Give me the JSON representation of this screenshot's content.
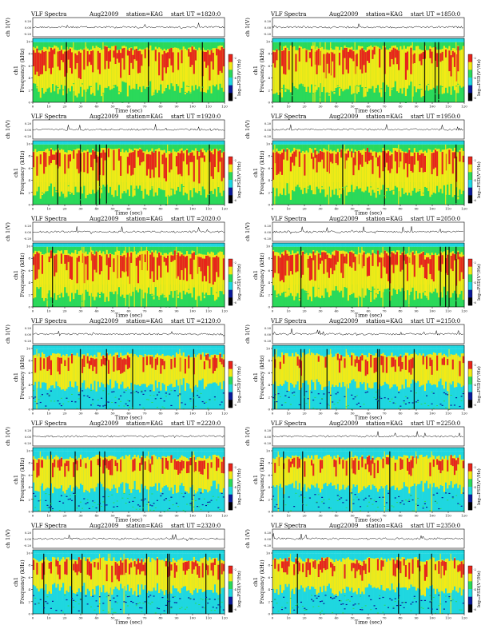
{
  "page": {
    "columns": 2,
    "rows": 6
  },
  "colors": {
    "blue": "#0a1a9a",
    "cyan": "#1fd7e0",
    "green": "#2bd95a",
    "yellow": "#f2ea16",
    "red": "#e8251b",
    "dark": "#000000"
  },
  "chart_data": [
    {
      "type": "heatmap",
      "title": "VLF Spectra",
      "date": "Aug22009",
      "station": "station=KAG",
      "start": "start UT =1820:0",
      "top_ylabel": "ch 1(V)",
      "top_yticks": [
        "0.20",
        "0.00",
        "-0.20"
      ],
      "ylabel_line1": "ch1",
      "ylabel_line2": "Frequency (kHz)",
      "xlabel": "Time (sec)",
      "xticks": [
        0,
        10,
        20,
        30,
        40,
        50,
        60,
        70,
        80,
        90,
        100,
        110,
        120
      ],
      "yticks": [
        0,
        2,
        4,
        6,
        8,
        10
      ],
      "ylim": [
        0,
        10
      ],
      "xlim": [
        0,
        120
      ],
      "colorbar_label": "log₁₀PSD(V²/Hz)",
      "colorbar_ticks": [
        "-2",
        "-4",
        "-6"
      ]
    },
    {
      "type": "heatmap",
      "title": "VLF Spectra",
      "date": "Aug22009",
      "station": "station=KAG",
      "start": "start UT =1850:0",
      "top_ylabel": "ch 1(V)",
      "top_yticks": [
        "0.20",
        "0.00",
        "-0.20"
      ],
      "ylabel_line1": "ch1",
      "ylabel_line2": "Frequency (kHz)",
      "xlabel": "Time (sec)",
      "xticks": [
        0,
        10,
        20,
        30,
        40,
        50,
        60,
        70,
        80,
        90,
        100,
        110,
        120
      ],
      "yticks": [
        0,
        2,
        4,
        6,
        8,
        10
      ],
      "ylim": [
        0,
        10
      ],
      "xlim": [
        0,
        120
      ],
      "colorbar_label": "log₁₀PSD(V²/Hz)",
      "colorbar_ticks": [
        "-2",
        "-4",
        "-6"
      ]
    },
    {
      "type": "heatmap",
      "title": "VLF Spectra",
      "date": "Aug22009",
      "station": "station=KAG",
      "start": "start UT =1920:0",
      "top_ylabel": "ch 1(V)",
      "top_yticks": [
        "0.20",
        "0.00",
        "-0.20"
      ],
      "ylabel_line1": "ch1",
      "ylabel_line2": "Frequency (kHz)",
      "xlabel": "Time (sec)",
      "xticks": [
        0,
        10,
        20,
        30,
        40,
        50,
        60,
        70,
        80,
        90,
        100,
        110,
        120
      ],
      "yticks": [
        0,
        2,
        4,
        6,
        8,
        10
      ],
      "ylim": [
        0,
        10
      ],
      "xlim": [
        0,
        120
      ],
      "colorbar_label": "log₁₀PSD(V²/Hz)",
      "colorbar_ticks": [
        "-2",
        "-4",
        "-6"
      ]
    },
    {
      "type": "heatmap",
      "title": "VLF Spectra",
      "date": "Aug22009",
      "station": "station=KAG",
      "start": "start UT =1950:0",
      "top_ylabel": "ch 1(V)",
      "top_yticks": [
        "0.20",
        "0.00",
        "-0.20"
      ],
      "ylabel_line1": "ch1",
      "ylabel_line2": "Frequency (kHz)",
      "xlabel": "Time (sec)",
      "xticks": [
        0,
        10,
        20,
        30,
        40,
        50,
        60,
        70,
        80,
        90,
        100,
        110,
        120
      ],
      "yticks": [
        0,
        2,
        4,
        6,
        8,
        10
      ],
      "ylim": [
        0,
        10
      ],
      "xlim": [
        0,
        120
      ],
      "colorbar_label": "log₁₀PSD(V²/Hz)",
      "colorbar_ticks": [
        "-2",
        "-4",
        "-6"
      ]
    },
    {
      "type": "heatmap",
      "title": "VLF Spectra",
      "date": "Aug22009",
      "station": "station=KAG",
      "start": "start UT =2020:0",
      "top_ylabel": "ch 1(V)",
      "top_yticks": [
        "0.20",
        "0.00",
        "-0.20"
      ],
      "ylabel_line1": "ch1",
      "ylabel_line2": "Frequency (kHz)",
      "xlabel": "Time (sec)",
      "xticks": [
        0,
        10,
        20,
        30,
        40,
        50,
        60,
        70,
        80,
        90,
        100,
        110,
        120
      ],
      "yticks": [
        0,
        2,
        4,
        6,
        8,
        10
      ],
      "ylim": [
        0,
        10
      ],
      "xlim": [
        0,
        120
      ],
      "colorbar_label": "log₁₀PSD(V²/Hz)",
      "colorbar_ticks": [
        "-2",
        "-4",
        "-6"
      ]
    },
    {
      "type": "heatmap",
      "title": "VLF Spectra",
      "date": "Aug22009",
      "station": "station=KAG",
      "start": "start UT =2050:0",
      "top_ylabel": "ch 1(V)",
      "top_yticks": [
        "0.20",
        "0.00",
        "-0.20"
      ],
      "ylabel_line1": "ch1",
      "ylabel_line2": "Frequency (kHz)",
      "xlabel": "Time (sec)",
      "xticks": [
        0,
        10,
        20,
        30,
        40,
        50,
        60,
        70,
        80,
        90,
        100,
        110,
        120
      ],
      "yticks": [
        0,
        2,
        4,
        6,
        8,
        10
      ],
      "ylim": [
        0,
        10
      ],
      "xlim": [
        0,
        120
      ],
      "colorbar_label": "log₁₀PSD(V²/Hz)",
      "colorbar_ticks": [
        "-2",
        "-4",
        "-6"
      ]
    },
    {
      "type": "heatmap",
      "title": "VLF Spectra",
      "date": "Aug22009",
      "station": "station=KAG",
      "start": "start UT =2120:0",
      "top_ylabel": "ch 1(V)",
      "top_yticks": [
        "0.20",
        "0.00",
        "-0.20"
      ],
      "ylabel_line1": "ch1",
      "ylabel_line2": "Frequency (kHz)",
      "xlabel": "Time (sec)",
      "xticks": [
        0,
        10,
        20,
        30,
        40,
        50,
        60,
        70,
        80,
        90,
        100,
        110,
        120
      ],
      "yticks": [
        0,
        2,
        4,
        6,
        8,
        10
      ],
      "ylim": [
        0,
        10
      ],
      "xlim": [
        0,
        120
      ],
      "colorbar_label": "log₁₀PSD(V²/Hz)",
      "colorbar_ticks": [
        "-2",
        "-4",
        "-6"
      ]
    },
    {
      "type": "heatmap",
      "title": "VLF Spectra",
      "date": "Aug22009",
      "station": "station=KAG",
      "start": "start UT =2150:0",
      "top_ylabel": "ch 1(V)",
      "top_yticks": [
        "0.20",
        "0.00",
        "-0.20"
      ],
      "ylabel_line1": "ch1",
      "ylabel_line2": "Frequency (kHz)",
      "xlabel": "Time (sec)",
      "xticks": [
        0,
        10,
        20,
        30,
        40,
        50,
        60,
        70,
        80,
        90,
        100,
        110,
        120
      ],
      "yticks": [
        0,
        2,
        4,
        6,
        8,
        10
      ],
      "ylim": [
        0,
        10
      ],
      "xlim": [
        0,
        120
      ],
      "colorbar_label": "log₁₀PSD(V²/Hz)",
      "colorbar_ticks": [
        "-2",
        "-4",
        "-6"
      ]
    },
    {
      "type": "heatmap",
      "title": "VLF Spectra",
      "date": "Aug22009",
      "station": "station=KAG",
      "start": "start UT =2220:0",
      "top_ylabel": "ch 1(V)",
      "top_yticks": [
        "0.20",
        "0.00",
        "-0.20"
      ],
      "ylabel_line1": "ch1",
      "ylabel_line2": "Frequency (kHz)",
      "xlabel": "Time (sec)",
      "xticks": [
        0,
        10,
        20,
        30,
        40,
        50,
        60,
        70,
        80,
        90,
        100,
        110,
        120
      ],
      "yticks": [
        0,
        2,
        4,
        6,
        8,
        10
      ],
      "ylim": [
        0,
        10
      ],
      "xlim": [
        0,
        120
      ],
      "colorbar_label": "log₁₀PSD(V²/Hz)",
      "colorbar_ticks": [
        "-2",
        "-4",
        "-6"
      ]
    },
    {
      "type": "heatmap",
      "title": "VLF Spectra",
      "date": "Aug22009",
      "station": "station=KAG",
      "start": "start UT =2250:0",
      "top_ylabel": "ch 1(V)",
      "top_yticks": [
        "0.20",
        "0.00",
        "-0.20"
      ],
      "ylabel_line1": "ch1",
      "ylabel_line2": "Frequency (kHz)",
      "xlabel": "Time (sec)",
      "xticks": [
        0,
        10,
        20,
        30,
        40,
        50,
        60,
        70,
        80,
        90,
        100,
        110,
        120
      ],
      "yticks": [
        0,
        2,
        4,
        6,
        8,
        10
      ],
      "ylim": [
        0,
        10
      ],
      "xlim": [
        0,
        120
      ],
      "colorbar_label": "log₁₀PSD(V²/Hz)",
      "colorbar_ticks": [
        "-2",
        "-4",
        "-6"
      ]
    },
    {
      "type": "heatmap",
      "title": "VLF Spectra",
      "date": "Aug22009",
      "station": "station=KAG",
      "start": "start UT =2320:0",
      "top_ylabel": "ch 1(V)",
      "top_yticks": [
        "0.20",
        "0.00",
        "-0.20"
      ],
      "ylabel_line1": "ch1",
      "ylabel_line2": "Frequency (kHz)",
      "xlabel": "Time (sec)",
      "xticks": [
        0,
        10,
        20,
        30,
        40,
        50,
        60,
        70,
        80,
        90,
        100,
        110,
        120
      ],
      "yticks": [
        0,
        2,
        4,
        6,
        8,
        10
      ],
      "ylim": [
        0,
        10
      ],
      "xlim": [
        0,
        120
      ],
      "colorbar_label": "log₁₀PSD(V²/Hz)",
      "colorbar_ticks": [
        "-2",
        "-4",
        "-6"
      ]
    },
    {
      "type": "heatmap",
      "title": "VLF Spectra",
      "date": "Aug22009",
      "station": "station=KAG",
      "start": "start UT =2350:0",
      "top_ylabel": "ch 1(V)",
      "top_yticks": [
        "0.20",
        "0.00",
        "-0.20"
      ],
      "ylabel_line1": "ch1",
      "ylabel_line2": "Frequency (kHz)",
      "xlabel": "Time (sec)",
      "xticks": [
        0,
        10,
        20,
        30,
        40,
        50,
        60,
        70,
        80,
        90,
        100,
        110,
        120
      ],
      "yticks": [
        0,
        2,
        4,
        6,
        8,
        10
      ],
      "ylim": [
        0,
        10
      ],
      "xlim": [
        0,
        120
      ],
      "colorbar_label": "log₁₀PSD(V²/Hz)",
      "colorbar_ticks": [
        "-2",
        "-4",
        "-6"
      ]
    }
  ]
}
